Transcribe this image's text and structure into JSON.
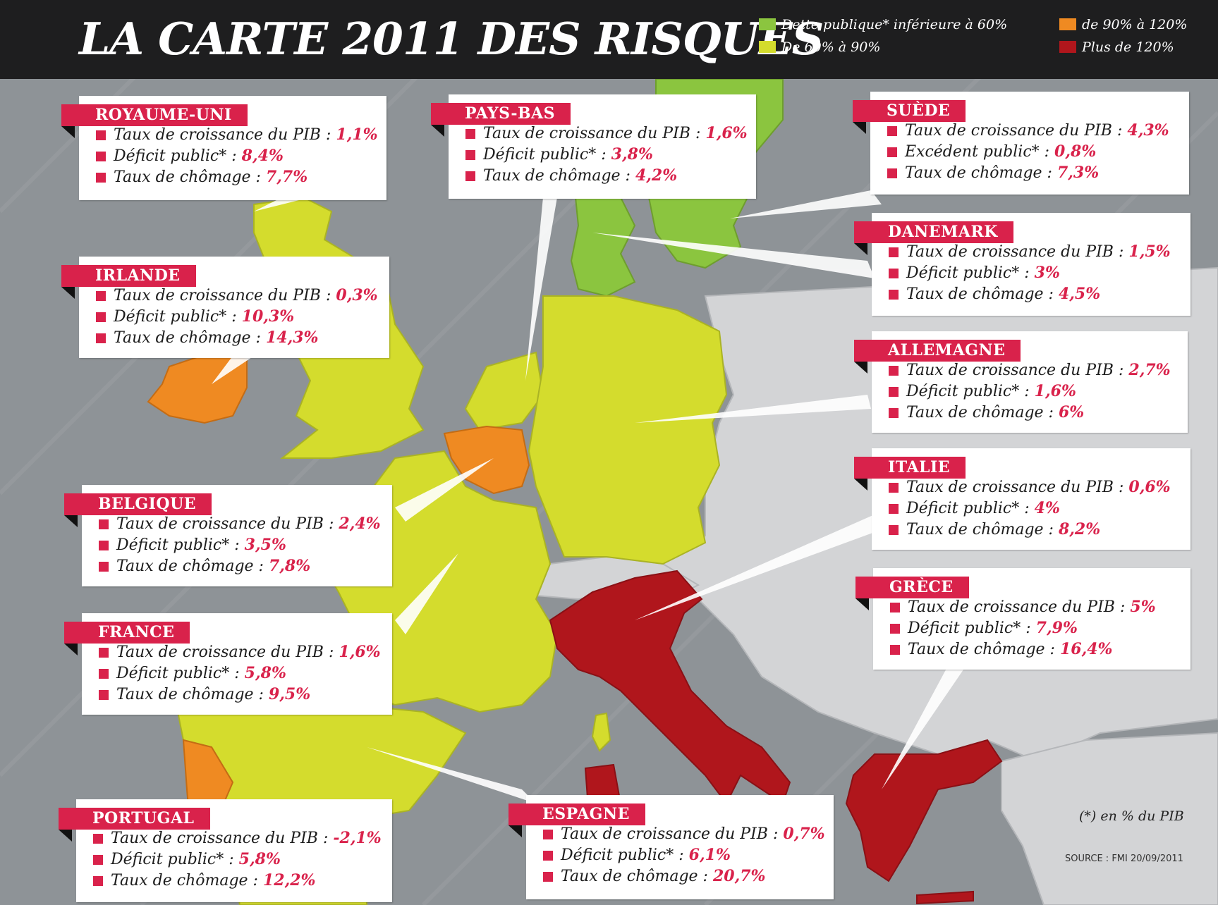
{
  "title": "LA CARTE 2011 DES RISQUES",
  "colors": {
    "green": "#8bc53f",
    "yellow": "#d4dc2d",
    "orange": "#ef8a22",
    "red": "#b0161c",
    "gray": "#d3d4d6",
    "sea": "#8e9397",
    "accent": "#d9224b"
  },
  "legend": [
    {
      "label": "Dette publique* inférieure à 60%",
      "color": "#8bc53f"
    },
    {
      "label": "De 60% à 90%",
      "color": "#d4dc2d"
    },
    {
      "label": "de 90% à 120%",
      "color": "#ef8a22"
    },
    {
      "label": "Plus de 120%",
      "color": "#b0161c"
    }
  ],
  "countries": [
    {
      "name": "ROYAUME-UNI",
      "stats": [
        {
          "label": "Taux de croissance du PIB :",
          "value": "1,1%"
        },
        {
          "label": "Déficit public* :",
          "value": "8,4%"
        },
        {
          "label": "Taux de chômage :",
          "value": "7,7%"
        }
      ]
    },
    {
      "name": "PAYS-BAS",
      "stats": [
        {
          "label": "Taux de croissance du PIB :",
          "value": "1,6%"
        },
        {
          "label": "Déficit public* :",
          "value": "3,8%"
        },
        {
          "label": "Taux de chômage :",
          "value": "4,2%"
        }
      ]
    },
    {
      "name": "SUÈDE",
      "stats": [
        {
          "label": "Taux de croissance du PIB :",
          "value": "4,3%"
        },
        {
          "label": "Excédent public* :",
          "value": "0,8%"
        },
        {
          "label": "Taux de chômage :",
          "value": "7,3%"
        }
      ]
    },
    {
      "name": "IRLANDE",
      "stats": [
        {
          "label": "Taux de croissance du PIB :",
          "value": "0,3%"
        },
        {
          "label": "Déficit public* :",
          "value": "10,3%"
        },
        {
          "label": "Taux de chômage :",
          "value": "14,3%"
        }
      ]
    },
    {
      "name": "DANEMARK",
      "stats": [
        {
          "label": "Taux de croissance du PIB :",
          "value": "1,5%"
        },
        {
          "label": "Déficit public* :",
          "value": "3%"
        },
        {
          "label": "Taux de chômage :",
          "value": "4,5%"
        }
      ]
    },
    {
      "name": "ALLEMAGNE",
      "stats": [
        {
          "label": "Taux de croissance du PIB :",
          "value": "2,7%"
        },
        {
          "label": "Déficit public* :",
          "value": "1,6%"
        },
        {
          "label": "Taux de chômage :",
          "value": "6%"
        }
      ]
    },
    {
      "name": "BELGIQUE",
      "stats": [
        {
          "label": "Taux de croissance du PIB :",
          "value": "2,4%"
        },
        {
          "label": "Déficit public* :",
          "value": "3,5%"
        },
        {
          "label": "Taux de chômage :",
          "value": "7,8%"
        }
      ]
    },
    {
      "name": "ITALIE",
      "stats": [
        {
          "label": "Taux de croissance du PIB :",
          "value": "0,6%"
        },
        {
          "label": "Déficit public* :",
          "value": "4%"
        },
        {
          "label": "Taux de chômage :",
          "value": "8,2%"
        }
      ]
    },
    {
      "name": "FRANCE",
      "stats": [
        {
          "label": "Taux de croissance du PIB :",
          "value": "1,6%"
        },
        {
          "label": "Déficit public* :",
          "value": "5,8%"
        },
        {
          "label": "Taux de chômage :",
          "value": "9,5%"
        }
      ]
    },
    {
      "name": "GRÈCE",
      "stats": [
        {
          "label": "Taux de croissance du PIB :",
          "value": "5%"
        },
        {
          "label": "Déficit public* :",
          "value": "7,9%"
        },
        {
          "label": "Taux de chômage :",
          "value": "16,4%"
        }
      ]
    },
    {
      "name": "PORTUGAL",
      "stats": [
        {
          "label": "Taux de croissance du PIB :",
          "value": "-2,1%"
        },
        {
          "label": "Déficit public* :",
          "value": "5,8%"
        },
        {
          "label": "Taux de chômage :",
          "value": "12,2%"
        }
      ]
    },
    {
      "name": "ESPAGNE",
      "stats": [
        {
          "label": "Taux de croissance du PIB :",
          "value": "0,7%"
        },
        {
          "label": "Déficit public* :",
          "value": "6,1%"
        },
        {
          "label": "Taux de chômage :",
          "value": "20,7%"
        }
      ]
    }
  ],
  "footnote": "(*) en % du PIB",
  "source": "SOURCE : FMI 20/09/2011"
}
